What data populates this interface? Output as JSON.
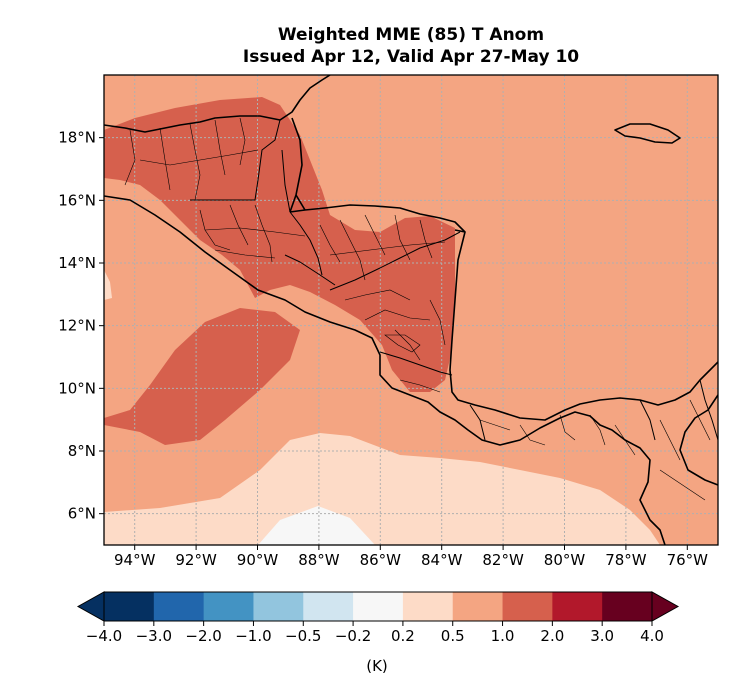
{
  "title": {
    "line1": "Weighted MME (85) T Anom",
    "line2": "Issued Apr 12, Valid Apr 27-May 10"
  },
  "map": {
    "lon_range": [
      -95,
      -75
    ],
    "lat_range": [
      5,
      20
    ],
    "x_ticks": [
      {
        "lon": -94,
        "label": "94°W"
      },
      {
        "lon": -92,
        "label": "92°W"
      },
      {
        "lon": -90,
        "label": "90°W"
      },
      {
        "lon": -88,
        "label": "88°W"
      },
      {
        "lon": -86,
        "label": "86°W"
      },
      {
        "lon": -84,
        "label": "84°W"
      },
      {
        "lon": -82,
        "label": "82°W"
      },
      {
        "lon": -80,
        "label": "80°W"
      },
      {
        "lon": -78,
        "label": "78°W"
      },
      {
        "lon": -76,
        "label": "76°W"
      }
    ],
    "y_ticks": [
      {
        "lat": 6,
        "label": "6°N"
      },
      {
        "lat": 8,
        "label": "8°N"
      },
      {
        "lat": 10,
        "label": "10°N"
      },
      {
        "lat": 12,
        "label": "12°N"
      },
      {
        "lat": 14,
        "label": "14°N"
      },
      {
        "lat": 16,
        "label": "16°N"
      },
      {
        "lat": 18,
        "label": "18°N"
      }
    ],
    "gridlines": true
  },
  "colorbar": {
    "label": "(K)",
    "extend": "both",
    "levels": [
      "−4.0",
      "−3.0",
      "−2.0",
      "−1.0",
      "−0.5",
      "−0.2",
      "0.2",
      "0.5",
      "1.0",
      "2.0",
      "3.0",
      "4.0"
    ],
    "colors": [
      "#053061",
      "#2166ac",
      "#4393c3",
      "#92c5de",
      "#d1e5f0",
      "#f7f7f7",
      "#fddbc7",
      "#f4a582",
      "#d6604d",
      "#b2182b",
      "#67001f"
    ],
    "under_color": "#053061",
    "over_color": "#67001f"
  }
}
